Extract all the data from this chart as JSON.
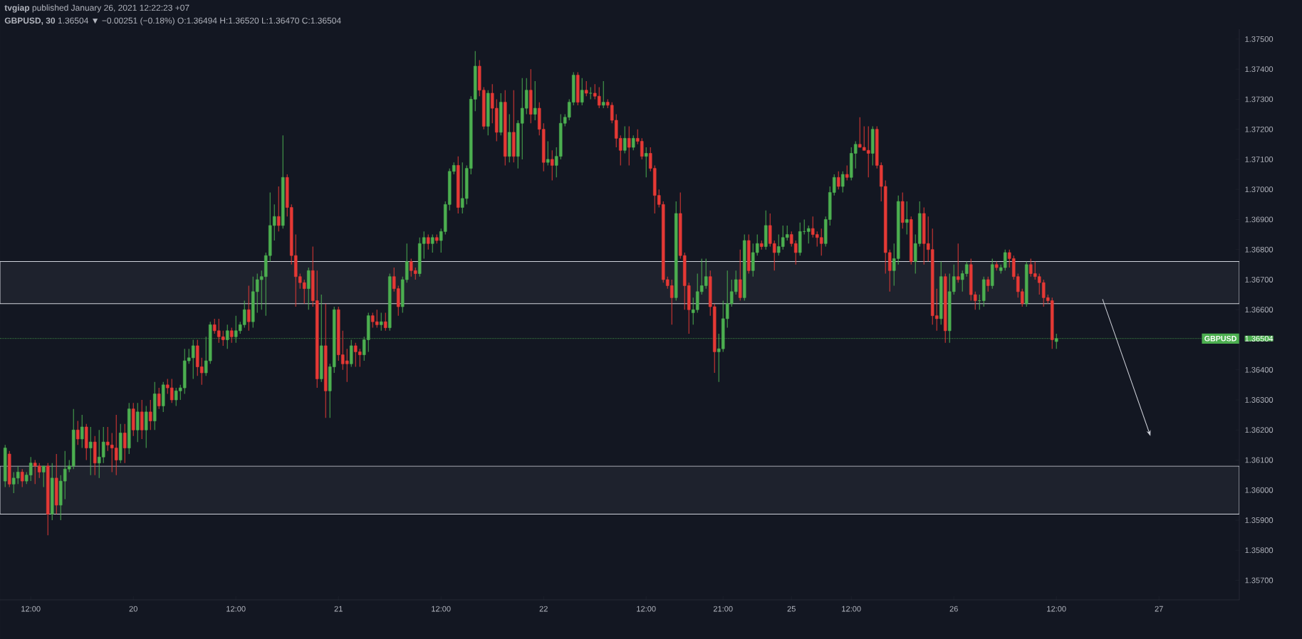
{
  "chart_data": {
    "type": "candlestick",
    "title": "**tvgiap** published January 26, 2021 12:22:23 +07",
    "subtitle": "**GBPUSD, 30** 1.36504 ▼ −0.00251 (−0.18%) O:1.36494 H:1.36520 L:1.36470 C:1.36504",
    "categories": [
      null,
      null,
      null,
      null,
      null,
      null,
      "12:00",
      null,
      null,
      null,
      null,
      null,
      null,
      null,
      null,
      null,
      null,
      null,
      null,
      null,
      null,
      null,
      null,
      null,
      null,
      null,
      null,
      null,
      null,
      null,
      "20",
      null,
      null,
      null,
      null,
      null,
      null,
      null,
      null,
      null,
      null,
      null,
      null,
      null,
      null,
      null,
      null,
      null,
      null,
      null,
      null,
      null,
      null,
      null,
      "12:00",
      null,
      null,
      null,
      null,
      null,
      null,
      null,
      null,
      null,
      null,
      null,
      null,
      null,
      null,
      null,
      null,
      null,
      null,
      null,
      null,
      null,
      null,
      null,
      "21",
      null,
      null,
      null,
      null,
      null,
      null,
      null,
      null,
      null,
      null,
      null,
      null,
      null,
      null,
      null,
      null,
      null,
      null,
      null,
      null,
      null,
      null,
      null,
      "12:00",
      null,
      null,
      null,
      null,
      null,
      null,
      null,
      null,
      null,
      null,
      null,
      null,
      null,
      null,
      null,
      null,
      null,
      null,
      null,
      null,
      null,
      null,
      null,
      "22",
      null,
      null,
      null,
      null,
      null,
      null,
      null,
      null,
      null,
      null,
      null,
      null,
      null,
      null,
      null,
      null,
      null,
      null,
      null,
      null,
      null,
      null,
      null,
      "12:00",
      null,
      null,
      null,
      null,
      null,
      null,
      null,
      null,
      null,
      null,
      null,
      null,
      null,
      null,
      null,
      null,
      null,
      "21:00",
      null,
      null,
      null,
      null,
      null,
      null,
      null,
      null,
      null,
      null,
      null,
      null,
      null,
      null,
      null,
      "25",
      null,
      null,
      null,
      null,
      null,
      null,
      null,
      null,
      null,
      null,
      null,
      null,
      null,
      "12:00",
      null,
      null,
      null,
      null,
      null,
      null,
      null,
      null,
      null,
      null,
      null,
      null,
      null,
      null,
      null,
      null,
      null,
      null,
      null,
      null,
      null,
      null,
      null,
      "26",
      null,
      null,
      null,
      null,
      null,
      null,
      null,
      null,
      null,
      null,
      null,
      null,
      null,
      null,
      null,
      null,
      null,
      null,
      null,
      null,
      null,
      null,
      null,
      "12:00",
      null,
      null,
      null,
      null,
      null,
      null,
      null,
      null,
      null,
      null,
      null,
      null,
      null,
      null,
      null,
      null,
      null,
      null,
      null,
      null,
      null,
      null,
      null,
      "27",
      null,
      null,
      null,
      null,
      null,
      null,
      null,
      null,
      null,
      null,
      null,
      null,
      null,
      null,
      null,
      null,
      null,
      null
    ],
    "ohlc": [
      [
        1.3603,
        1.3615,
        1.3601,
        1.3614
      ],
      [
        1.3612,
        1.3613,
        1.3601,
        1.3602
      ],
      [
        1.3602,
        1.3606,
        1.3599,
        1.3604
      ],
      [
        1.3604,
        1.3608,
        1.3602,
        1.3606
      ],
      [
        1.3606,
        1.3607,
        1.3601,
        1.3603
      ],
      [
        1.3603,
        1.3606,
        1.3602,
        1.3605
      ],
      [
        1.3605,
        1.3611,
        1.3603,
        1.3609
      ],
      [
        1.3609,
        1.361,
        1.3602,
        1.3608
      ],
      [
        1.3608,
        1.3609,
        1.3604,
        1.3606
      ],
      [
        1.3606,
        1.3608,
        1.3601,
        1.3608
      ],
      [
        1.3608,
        1.3609,
        1.3585,
        1.3592
      ],
      [
        1.3592,
        1.3609,
        1.359,
        1.3604
      ],
      [
        1.3604,
        1.3612,
        1.3592,
        1.3595
      ],
      [
        1.3595,
        1.3605,
        1.359,
        1.3603
      ],
      [
        1.3603,
        1.3613,
        1.3597,
        1.3607
      ],
      [
        1.3607,
        1.361,
        1.3606,
        1.3608
      ],
      [
        1.3608,
        1.3627,
        1.3607,
        1.362
      ],
      [
        1.362,
        1.3623,
        1.3615,
        1.3617
      ],
      [
        1.3617,
        1.3625,
        1.3614,
        1.3621
      ],
      [
        1.3621,
        1.3622,
        1.361,
        1.3614
      ],
      [
        1.3614,
        1.3621,
        1.3605,
        1.3616
      ],
      [
        1.3616,
        1.3618,
        1.3605,
        1.3609
      ],
      [
        1.3609,
        1.362,
        1.3604,
        1.3611
      ],
      [
        1.3611,
        1.3621,
        1.3609,
        1.3616
      ],
      [
        1.3616,
        1.3621,
        1.3613,
        1.3615
      ],
      [
        1.3615,
        1.3619,
        1.3606,
        1.3614
      ],
      [
        1.3614,
        1.3625,
        1.3605,
        1.361
      ],
      [
        1.361,
        1.3622,
        1.3609,
        1.3619
      ],
      [
        1.3619,
        1.3622,
        1.3609,
        1.3614
      ],
      [
        1.3614,
        1.3629,
        1.3612,
        1.3627
      ],
      [
        1.3627,
        1.3629,
        1.3618,
        1.362
      ],
      [
        1.362,
        1.3629,
        1.3616,
        1.3626
      ],
      [
        1.3626,
        1.363,
        1.3617,
        1.362
      ],
      [
        1.362,
        1.3628,
        1.3614,
        1.3626
      ],
      [
        1.3626,
        1.363,
        1.362,
        1.3623
      ],
      [
        1.3623,
        1.3636,
        1.362,
        1.3632
      ],
      [
        1.3632,
        1.3634,
        1.3627,
        1.3628
      ],
      [
        1.3628,
        1.3636,
        1.3626,
        1.3635
      ],
      [
        1.3635,
        1.3637,
        1.3632,
        1.3634
      ],
      [
        1.3634,
        1.3637,
        1.3629,
        1.363
      ],
      [
        1.363,
        1.3634,
        1.3628,
        1.3633
      ],
      [
        1.3633,
        1.3635,
        1.363,
        1.3634
      ],
      [
        1.3634,
        1.3647,
        1.3632,
        1.3643
      ],
      [
        1.3643,
        1.3647,
        1.3642,
        1.3644
      ],
      [
        1.3644,
        1.365,
        1.3637,
        1.3648
      ],
      [
        1.3648,
        1.365,
        1.3638,
        1.3641
      ],
      [
        1.3641,
        1.3644,
        1.3635,
        1.3639
      ],
      [
        1.3639,
        1.3651,
        1.3638,
        1.3643
      ],
      [
        1.3643,
        1.3656,
        1.3642,
        1.3655
      ],
      [
        1.3655,
        1.3657,
        1.3652,
        1.3653
      ],
      [
        1.3653,
        1.3657,
        1.3649,
        1.3651
      ],
      [
        1.3651,
        1.3653,
        1.3648,
        1.365
      ],
      [
        1.365,
        1.3655,
        1.3647,
        1.3653
      ],
      [
        1.3653,
        1.3654,
        1.3649,
        1.3651
      ],
      [
        1.3651,
        1.3658,
        1.3649,
        1.3653
      ],
      [
        1.3653,
        1.3656,
        1.3652,
        1.3655
      ],
      [
        1.3655,
        1.3663,
        1.3654,
        1.366
      ],
      [
        1.366,
        1.3668,
        1.3653,
        1.3656
      ],
      [
        1.3656,
        1.3671,
        1.3654,
        1.3666
      ],
      [
        1.3666,
        1.3672,
        1.3659,
        1.367
      ],
      [
        1.367,
        1.3673,
        1.366,
        1.3671
      ],
      [
        1.3671,
        1.3679,
        1.3658,
        1.3678
      ],
      [
        1.3678,
        1.3699,
        1.3676,
        1.3688
      ],
      [
        1.3688,
        1.3695,
        1.3683,
        1.3691
      ],
      [
        1.3691,
        1.3701,
        1.3686,
        1.3688
      ],
      [
        1.3688,
        1.3718,
        1.3687,
        1.3704
      ],
      [
        1.3704,
        1.3705,
        1.3691,
        1.3694
      ],
      [
        1.3694,
        1.3695,
        1.3675,
        1.3678
      ],
      [
        1.3678,
        1.3685,
        1.3661,
        1.3671
      ],
      [
        1.3671,
        1.3672,
        1.3667,
        1.3669
      ],
      [
        1.3669,
        1.367,
        1.3662,
        1.3667
      ],
      [
        1.3667,
        1.3674,
        1.366,
        1.3673
      ],
      [
        1.3673,
        1.3681,
        1.3661,
        1.3663
      ],
      [
        1.3663,
        1.3673,
        1.3634,
        1.3637
      ],
      [
        1.3637,
        1.3665,
        1.3636,
        1.3648
      ],
      [
        1.3648,
        1.3662,
        1.3624,
        1.3633
      ],
      [
        1.3633,
        1.3642,
        1.3624,
        1.3641
      ],
      [
        1.3641,
        1.3661,
        1.3639,
        1.366
      ],
      [
        1.366,
        1.3661,
        1.3643,
        1.3645
      ],
      [
        1.3645,
        1.3653,
        1.364,
        1.3642
      ],
      [
        1.3643,
        1.3647,
        1.3636,
        1.3642
      ],
      [
        1.3642,
        1.365,
        1.3641,
        1.3648
      ],
      [
        1.3648,
        1.3649,
        1.3641,
        1.3646
      ],
      [
        1.3646,
        1.3647,
        1.3641,
        1.3645
      ],
      [
        1.3645,
        1.3651,
        1.3643,
        1.365
      ],
      [
        1.365,
        1.3659,
        1.3646,
        1.3658
      ],
      [
        1.3658,
        1.3659,
        1.3654,
        1.3656
      ],
      [
        1.3656,
        1.366,
        1.3654,
        1.3655
      ],
      [
        1.3655,
        1.3659,
        1.3653,
        1.3656
      ],
      [
        1.3656,
        1.3659,
        1.3653,
        1.3654
      ],
      [
        1.3654,
        1.3672,
        1.3653,
        1.3671
      ],
      [
        1.3671,
        1.3674,
        1.3666,
        1.3667
      ],
      [
        1.3667,
        1.3668,
        1.3658,
        1.3661
      ],
      [
        1.3661,
        1.3671,
        1.3659,
        1.367
      ],
      [
        1.367,
        1.3682,
        1.3669,
        1.3676
      ],
      [
        1.3676,
        1.3677,
        1.3671,
        1.3673
      ],
      [
        1.3673,
        1.3674,
        1.367,
        1.3672
      ],
      [
        1.3672,
        1.3684,
        1.3671,
        1.3682
      ],
      [
        1.3682,
        1.3686,
        1.3677,
        1.3684
      ],
      [
        1.3684,
        1.3685,
        1.368,
        1.3682
      ],
      [
        1.3682,
        1.3685,
        1.3679,
        1.3684
      ],
      [
        1.3684,
        1.3685,
        1.3682,
        1.3683
      ],
      [
        1.3683,
        1.3687,
        1.3679,
        1.3686
      ],
      [
        1.3686,
        1.3696,
        1.3685,
        1.3695
      ],
      [
        1.3695,
        1.3707,
        1.3693,
        1.3706
      ],
      [
        1.3706,
        1.3709,
        1.3705,
        1.3708
      ],
      [
        1.3708,
        1.3711,
        1.3692,
        1.3694
      ],
      [
        1.3694,
        1.3709,
        1.3692,
        1.3697
      ],
      [
        1.3697,
        1.3708,
        1.3695,
        1.3707
      ],
      [
        1.3707,
        1.3731,
        1.3705,
        1.373
      ],
      [
        1.373,
        1.3746,
        1.3726,
        1.3741
      ],
      [
        1.3741,
        1.3743,
        1.3731,
        1.3733
      ],
      [
        1.3733,
        1.3734,
        1.372,
        1.3721
      ],
      [
        1.3721,
        1.3733,
        1.3718,
        1.3732
      ],
      [
        1.3732,
        1.3735,
        1.3722,
        1.3727
      ],
      [
        1.3727,
        1.373,
        1.3716,
        1.3719
      ],
      [
        1.3719,
        1.3732,
        1.3718,
        1.3729
      ],
      [
        1.3729,
        1.3733,
        1.3708,
        1.3711
      ],
      [
        1.3711,
        1.3725,
        1.3709,
        1.3719
      ],
      [
        1.3719,
        1.3733,
        1.3709,
        1.3711
      ],
      [
        1.3711,
        1.3723,
        1.3707,
        1.3722
      ],
      [
        1.3722,
        1.3737,
        1.371,
        1.3727
      ],
      [
        1.3727,
        1.3737,
        1.3725,
        1.3733
      ],
      [
        1.3733,
        1.374,
        1.3722,
        1.3725
      ],
      [
        1.3725,
        1.3736,
        1.3723,
        1.3727
      ],
      [
        1.3727,
        1.3729,
        1.3718,
        1.372
      ],
      [
        1.372,
        1.3722,
        1.3706,
        1.3709
      ],
      [
        1.3709,
        1.3716,
        1.3708,
        1.371
      ],
      [
        1.371,
        1.3713,
        1.3703,
        1.3708
      ],
      [
        1.3708,
        1.3714,
        1.3704,
        1.3711
      ],
      [
        1.3711,
        1.3725,
        1.371,
        1.3722
      ],
      [
        1.3722,
        1.3725,
        1.3721,
        1.3724
      ],
      [
        1.3724,
        1.373,
        1.3723,
        1.3729
      ],
      [
        1.3729,
        1.3739,
        1.3728,
        1.3738
      ],
      [
        1.3738,
        1.3739,
        1.3728,
        1.3729
      ],
      [
        1.3729,
        1.3737,
        1.3728,
        1.3733
      ],
      [
        1.3733,
        1.3736,
        1.3731,
        1.3732
      ],
      [
        1.3732,
        1.3734,
        1.373,
        1.3732
      ],
      [
        1.3732,
        1.3735,
        1.373,
        1.3731
      ],
      [
        1.3731,
        1.3734,
        1.3727,
        1.3728
      ],
      [
        1.3728,
        1.3736,
        1.3727,
        1.3729
      ],
      [
        1.3729,
        1.373,
        1.3727,
        1.3728
      ],
      [
        1.3728,
        1.3729,
        1.3722,
        1.3723
      ],
      [
        1.3723,
        1.3725,
        1.3714,
        1.3717
      ],
      [
        1.3717,
        1.3718,
        1.3708,
        1.3713
      ],
      [
        1.3713,
        1.3721,
        1.3712,
        1.3717
      ],
      [
        1.3717,
        1.3721,
        1.3708,
        1.3714
      ],
      [
        1.3714,
        1.3718,
        1.3713,
        1.3717
      ],
      [
        1.3717,
        1.372,
        1.3715,
        1.3716
      ],
      [
        1.3716,
        1.3717,
        1.371,
        1.3711
      ],
      [
        1.3711,
        1.3714,
        1.3704,
        1.3712
      ],
      [
        1.3712,
        1.3714,
        1.3706,
        1.3707
      ],
      [
        1.3707,
        1.3708,
        1.3692,
        1.3698
      ],
      [
        1.3698,
        1.37,
        1.3694,
        1.3695
      ],
      [
        1.3695,
        1.3696,
        1.3669,
        1.367
      ],
      [
        1.367,
        1.3671,
        1.3667,
        1.3668
      ],
      [
        1.3668,
        1.367,
        1.3655,
        1.3664
      ],
      [
        1.3664,
        1.3696,
        1.3663,
        1.3692
      ],
      [
        1.3692,
        1.3699,
        1.3677,
        1.3678
      ],
      [
        1.3678,
        1.3679,
        1.366,
        1.3668
      ],
      [
        1.3668,
        1.3669,
        1.3652,
        1.366
      ],
      [
        1.3659,
        1.3664,
        1.3655,
        1.366
      ],
      [
        1.366,
        1.3672,
        1.3659,
        1.3666
      ],
      [
        1.3666,
        1.3677,
        1.3665,
        1.3668
      ],
      [
        1.3668,
        1.3677,
        1.3667,
        1.3671
      ],
      [
        1.3671,
        1.3673,
        1.3658,
        1.3661
      ],
      [
        1.3661,
        1.3662,
        1.3639,
        1.3646
      ],
      [
        1.3646,
        1.3652,
        1.3636,
        1.3647
      ],
      [
        1.3647,
        1.3663,
        1.3646,
        1.3657
      ],
      [
        1.3657,
        1.3673,
        1.3654,
        1.3662
      ],
      [
        1.3662,
        1.367,
        1.3661,
        1.3666
      ],
      [
        1.3666,
        1.3673,
        1.3665,
        1.367
      ],
      [
        1.367,
        1.368,
        1.3663,
        1.3664
      ],
      [
        1.3664,
        1.3685,
        1.3663,
        1.3683
      ],
      [
        1.3683,
        1.3685,
        1.3672,
        1.3673
      ],
      [
        1.3673,
        1.3682,
        1.3671,
        1.3679
      ],
      [
        1.3679,
        1.3685,
        1.3678,
        1.3682
      ],
      [
        1.3682,
        1.3683,
        1.368,
        1.3681
      ],
      [
        1.3681,
        1.3693,
        1.368,
        1.3688
      ],
      [
        1.3688,
        1.3692,
        1.3681,
        1.3682
      ],
      [
        1.3682,
        1.3683,
        1.3673,
        1.3679
      ],
      [
        1.3679,
        1.3685,
        1.3678,
        1.3681
      ],
      [
        1.3681,
        1.3688,
        1.368,
        1.3684
      ],
      [
        1.3684,
        1.3688,
        1.3683,
        1.3685
      ],
      [
        1.3685,
        1.3686,
        1.3681,
        1.3682
      ],
      [
        1.3682,
        1.3683,
        1.3675,
        1.3679
      ],
      [
        1.3679,
        1.3689,
        1.3678,
        1.3686
      ],
      [
        1.3686,
        1.369,
        1.3685,
        1.3686
      ],
      [
        1.3686,
        1.3688,
        1.3682,
        1.3687
      ],
      [
        1.3687,
        1.3691,
        1.3684,
        1.3685
      ],
      [
        1.3685,
        1.3686,
        1.3681,
        1.3684
      ],
      [
        1.3684,
        1.3687,
        1.3678,
        1.3682
      ],
      [
        1.3682,
        1.3691,
        1.3681,
        1.369
      ],
      [
        1.369,
        1.3701,
        1.3688,
        1.3699
      ],
      [
        1.3699,
        1.3705,
        1.3698,
        1.3704
      ],
      [
        1.3704,
        1.3706,
        1.37,
        1.3701
      ],
      [
        1.3701,
        1.3706,
        1.3699,
        1.3705
      ],
      [
        1.3705,
        1.3708,
        1.3703,
        1.3704
      ],
      [
        1.3704,
        1.3714,
        1.3703,
        1.3712
      ],
      [
        1.3712,
        1.3716,
        1.3707,
        1.3715
      ],
      [
        1.3715,
        1.3724,
        1.3714,
        1.3714
      ],
      [
        1.3714,
        1.3721,
        1.3713,
        1.3713
      ],
      [
        1.3713,
        1.3721,
        1.3704,
        1.3712
      ],
      [
        1.3712,
        1.3721,
        1.3708,
        1.372
      ],
      [
        1.372,
        1.3721,
        1.3707,
        1.3708
      ],
      [
        1.3708,
        1.3709,
        1.3696,
        1.3701
      ],
      [
        1.3701,
        1.3703,
        1.3672,
        1.3679
      ],
      [
        1.3679,
        1.368,
        1.3666,
        1.3673
      ],
      [
        1.3673,
        1.3682,
        1.3668,
        1.3677
      ],
      [
        1.3677,
        1.3698,
        1.3675,
        1.3696
      ],
      [
        1.3696,
        1.3699,
        1.3687,
        1.3689
      ],
      [
        1.3689,
        1.3696,
        1.3685,
        1.369
      ],
      [
        1.369,
        1.3691,
        1.3675,
        1.3676
      ],
      [
        1.3676,
        1.3685,
        1.3672,
        1.3682
      ],
      [
        1.3682,
        1.3696,
        1.3681,
        1.3692
      ],
      [
        1.3692,
        1.3694,
        1.3675,
        1.3682
      ],
      [
        1.3682,
        1.3691,
        1.3676,
        1.368
      ],
      [
        1.368,
        1.3687,
        1.3655,
        1.3658
      ],
      [
        1.3658,
        1.3667,
        1.3653,
        1.3657
      ],
      [
        1.3657,
        1.3676,
        1.3655,
        1.3671
      ],
      [
        1.3671,
        1.3672,
        1.3649,
        1.3653
      ],
      [
        1.3653,
        1.3672,
        1.3649,
        1.3666
      ],
      [
        1.3666,
        1.3675,
        1.3665,
        1.3671
      ],
      [
        1.3671,
        1.3682,
        1.3669,
        1.367
      ],
      [
        1.367,
        1.3673,
        1.3666,
        1.3672
      ],
      [
        1.3672,
        1.3676,
        1.3671,
        1.3675
      ],
      [
        1.3675,
        1.3677,
        1.3663,
        1.3665
      ],
      [
        1.3665,
        1.3666,
        1.366,
        1.3663
      ],
      [
        1.3663,
        1.3665,
        1.366,
        1.3663
      ],
      [
        1.3663,
        1.3671,
        1.3661,
        1.367
      ],
      [
        1.367,
        1.3671,
        1.3666,
        1.3668
      ],
      [
        1.3668,
        1.3677,
        1.3667,
        1.3675
      ],
      [
        1.3675,
        1.3676,
        1.3673,
        1.3674
      ],
      [
        1.3673,
        1.3675,
        1.3672,
        1.3674
      ],
      [
        1.3674,
        1.368,
        1.3673,
        1.3679
      ],
      [
        1.3679,
        1.368,
        1.3674,
        1.3677
      ],
      [
        1.3677,
        1.3678,
        1.367,
        1.3671
      ],
      [
        1.3671,
        1.3672,
        1.3664,
        1.3666
      ],
      [
        1.3666,
        1.3667,
        1.3661,
        1.3662
      ],
      [
        1.3662,
        1.3676,
        1.3661,
        1.3675
      ],
      [
        1.3675,
        1.3677,
        1.3671,
        1.3672
      ],
      [
        1.3672,
        1.3676,
        1.367,
        1.3671
      ],
      [
        1.3671,
        1.3672,
        1.3665,
        1.3669
      ],
      [
        1.3669,
        1.367,
        1.3661,
        1.3664
      ],
      [
        1.3664,
        1.3665,
        1.3662,
        1.3663
      ],
      [
        1.3663,
        1.3664,
        1.3647,
        1.365
      ],
      [
        1.36494,
        1.3652,
        1.3647,
        1.36504
      ],
      null,
      null,
      null,
      null,
      null,
      null,
      null,
      null,
      null,
      null,
      null,
      null,
      null,
      null,
      null,
      null,
      null,
      null,
      null,
      null,
      null,
      null,
      null,
      null,
      null,
      null,
      null,
      null,
      null,
      null,
      null,
      null,
      null,
      null,
      null,
      null,
      null,
      null,
      null,
      null,
      null,
      null
    ],
    "ylim": [
      1.35635,
      1.37533
    ],
    "yticks": [
      {
        "value": 1.357,
        "label": "1.35700"
      },
      {
        "value": 1.358,
        "label": "1.35800"
      },
      {
        "value": 1.359,
        "label": "1.35900"
      },
      {
        "value": 1.36,
        "label": "1.36000"
      },
      {
        "value": 1.361,
        "label": "1.36100"
      },
      {
        "value": 1.362,
        "label": "1.36200"
      },
      {
        "value": 1.363,
        "label": "1.36300"
      },
      {
        "value": 1.364,
        "label": "1.36400"
      },
      {
        "value": 1.36504,
        "label": "1.36504"
      },
      {
        "value": 1.366,
        "label": "1.36600"
      },
      {
        "value": 1.367,
        "label": "1.36700"
      },
      {
        "value": 1.368,
        "label": "1.36800"
      },
      {
        "value": 1.369,
        "label": "1.36900"
      },
      {
        "value": 1.37,
        "label": "1.37000"
      },
      {
        "value": 1.371,
        "label": "1.37100"
      },
      {
        "value": 1.372,
        "label": "1.37200"
      },
      {
        "value": 1.373,
        "label": "1.37300"
      },
      {
        "value": 1.374,
        "label": "1.37400"
      },
      {
        "value": 1.375,
        "label": "1.37500"
      }
    ],
    "ref_lines": [
      {
        "axis": "y",
        "value": 1.36504,
        "label": "GBPUSD",
        "color": "#4caf50",
        "line_style": "dotted"
      }
    ],
    "bands": [
      {
        "axis": "y",
        "from": 1.3592,
        "to": 1.3608,
        "color": "#1e222d"
      },
      {
        "axis": "y",
        "from": 1.3662,
        "to": 1.3676,
        "color": "#1e222d"
      }
    ]
  }
}
